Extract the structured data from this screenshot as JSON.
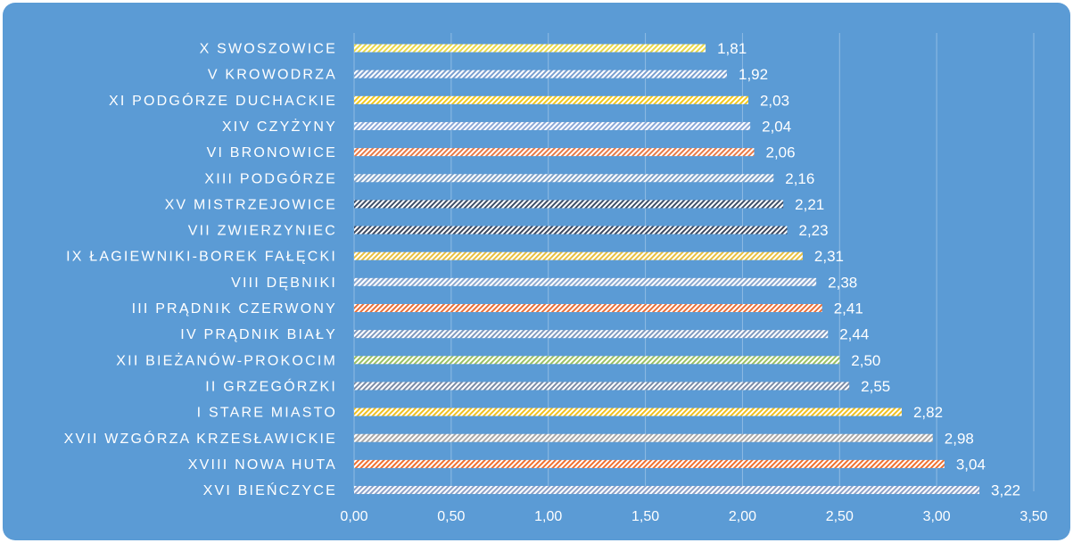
{
  "chart_data": {
    "type": "bar",
    "orientation": "horizontal",
    "title": "",
    "xlabel": "",
    "ylabel": "",
    "xlim": [
      0,
      3.5
    ],
    "ticks": [
      "0,00",
      "0,50",
      "1,00",
      "1,50",
      "2,00",
      "2,50",
      "3,00",
      "3,50"
    ],
    "tick_values": [
      0,
      0.5,
      1,
      1.5,
      2,
      2.5,
      3,
      3.5
    ],
    "grid": true,
    "legend": "none",
    "background_color": "#5b9bd5",
    "categories": [
      "X SWOSZOWICE",
      "V KROWODRZA",
      "XI PODGÓRZE DUCHACKIE",
      "XIV CZYŻYNY",
      "VI BRONOWICE",
      "XIII PODGÓRZE",
      "XV MISTRZEJOWICE",
      "VII ZWIERZYNIEC",
      "IX ŁAGIEWNIKI-BOREK FAŁĘCKI",
      "VIII DĘBNIKI",
      "III PRĄDNIK CZERWONY",
      "IV PRĄDNIK BIAŁY",
      "XII BIEŻANÓW-PROKOCIM",
      "II GRZEGÓRZKI",
      "I STARE MIASTO",
      "XVII WZGÓRZA KRZESŁAWICKIE",
      "XVIII NOWA HUTA",
      "XVI BIEŃCZYCE"
    ],
    "values": [
      1.81,
      1.92,
      2.03,
      2.04,
      2.06,
      2.16,
      2.21,
      2.23,
      2.31,
      2.38,
      2.41,
      2.44,
      2.5,
      2.55,
      2.82,
      2.98,
      3.04,
      3.22
    ],
    "value_labels": [
      "1,81",
      "1,92",
      "2,03",
      "2,04",
      "2,06",
      "2,16",
      "2,21",
      "2,23",
      "2,31",
      "2,38",
      "2,41",
      "2,44",
      "2,50",
      "2,55",
      "2,82",
      "2,98",
      "3,04",
      "3,22"
    ],
    "bar_pattern_colors": [
      "#e8d84a",
      "#7a9fd0",
      "#f2c81e",
      "#8aa8d8",
      "#e87a48",
      "#7fa2c8",
      "#3d4f6a",
      "#3b4860",
      "#e8c040",
      "#8aa8d0",
      "#e8703a",
      "#7f9ac0",
      "#9ac064",
      "#7a8ca8",
      "#f0c020",
      "#a8a8a8",
      "#f07030",
      "#8aa0c8"
    ]
  }
}
